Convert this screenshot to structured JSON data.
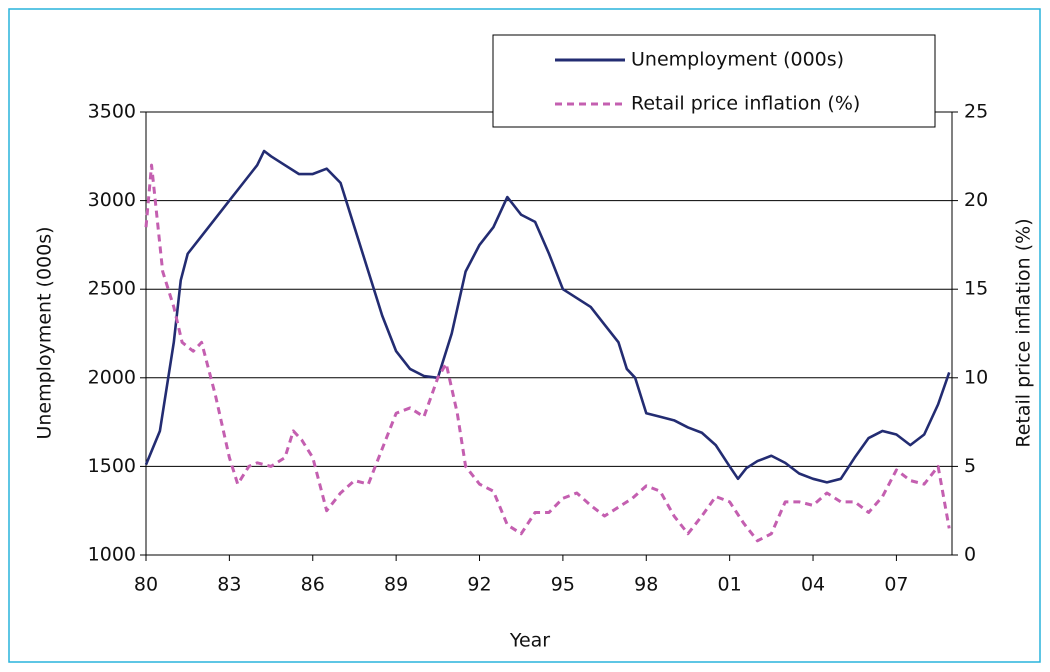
{
  "chart_data": {
    "type": "line",
    "x_label": "Year",
    "y_label": "Unemployment (000s)",
    "y2_label": "Retail price inflation (%)",
    "xlim": [
      1980,
      2009
    ],
    "xticks": [
      {
        "value": 1980,
        "label": "80"
      },
      {
        "value": 1983,
        "label": "83"
      },
      {
        "value": 1986,
        "label": "86"
      },
      {
        "value": 1989,
        "label": "89"
      },
      {
        "value": 1992,
        "label": "92"
      },
      {
        "value": 1995,
        "label": "95"
      },
      {
        "value": 1998,
        "label": "98"
      },
      {
        "value": 2001,
        "label": "01"
      },
      {
        "value": 2004,
        "label": "04"
      },
      {
        "value": 2007,
        "label": "07"
      }
    ],
    "ylim": [
      1000,
      3500
    ],
    "yticks": [
      1000,
      1500,
      2000,
      2500,
      3000,
      3500
    ],
    "y2lim": [
      0,
      25
    ],
    "y2ticks": [
      0,
      5,
      10,
      15,
      20,
      25
    ],
    "grid": true,
    "legend": "top-right",
    "series": [
      {
        "name": "Unemployment (000s)",
        "color": "#232c72",
        "dash": "solid",
        "x": [
          1980,
          1980.5,
          1981,
          1981.25,
          1981.5,
          1982,
          1982.5,
          1983,
          1983.5,
          1984,
          1984.25,
          1984.5,
          1985,
          1985.5,
          1986,
          1986.5,
          1987,
          1987.5,
          1988,
          1988.5,
          1989,
          1989.5,
          1990,
          1990.5,
          1991,
          1991.5,
          1992,
          1992.5,
          1993,
          1993.5,
          1994,
          1994.5,
          1995,
          1995.5,
          1996,
          1996.5,
          1997,
          1997.3,
          1997.6,
          1998,
          1998.5,
          1999,
          1999.5,
          2000,
          2000.5,
          2001,
          2001.3,
          2001.6,
          2002,
          2002.5,
          2003,
          2003.5,
          2004,
          2004.5,
          2005,
          2005.5,
          2006,
          2006.5,
          2007,
          2007.5,
          2008,
          2008.5,
          2008.9
        ],
        "values": [
          1510,
          1700,
          2200,
          2550,
          2700,
          2800,
          2900,
          3000,
          3100,
          3200,
          3280,
          3250,
          3200,
          3150,
          3150,
          3180,
          3100,
          2850,
          2600,
          2350,
          2150,
          2050,
          2010,
          2000,
          2250,
          2600,
          2750,
          2850,
          3020,
          2920,
          2880,
          2700,
          2500,
          2450,
          2400,
          2300,
          2200,
          2050,
          2000,
          1800,
          1780,
          1760,
          1720,
          1690,
          1620,
          1500,
          1430,
          1490,
          1530,
          1560,
          1520,
          1460,
          1430,
          1410,
          1430,
          1550,
          1660,
          1700,
          1680,
          1620,
          1680,
          1850,
          2030
        ]
      },
      {
        "name": "Retail price inflation (%)",
        "color": "#c45fb0",
        "dash": "dashed",
        "axis": "y2",
        "x": [
          1980,
          1980.2,
          1980.6,
          1981,
          1981.3,
          1981.7,
          1982,
          1982.5,
          1983,
          1983.3,
          1983.7,
          1984,
          1984.5,
          1985,
          1985.3,
          1985.6,
          1986,
          1986.5,
          1987,
          1987.5,
          1988,
          1988.5,
          1989,
          1989.5,
          1990,
          1990.5,
          1990.8,
          1991.2,
          1991.5,
          1992,
          1992.5,
          1993,
          1993.5,
          1994,
          1994.5,
          1995,
          1995.5,
          1996,
          1996.5,
          1997,
          1997.5,
          1998,
          1998.5,
          1999,
          1999.5,
          2000,
          2000.5,
          2001,
          2001.5,
          2002,
          2002.5,
          2003,
          2003.5,
          2004,
          2004.5,
          2005,
          2005.5,
          2006,
          2006.5,
          2007,
          2007.5,
          2008,
          2008.5,
          2008.9
        ],
        "values": [
          18.5,
          22,
          16,
          14,
          12,
          11.5,
          12,
          9,
          5.5,
          4,
          5,
          5.2,
          5,
          5.5,
          7,
          6.5,
          5.5,
          2.5,
          3.5,
          4.2,
          4,
          6,
          8,
          8.3,
          7.8,
          10,
          10.8,
          8,
          5,
          4,
          3.6,
          1.7,
          1.2,
          2.4,
          2.4,
          3.2,
          3.5,
          2.8,
          2.2,
          2.7,
          3.2,
          3.9,
          3.6,
          2.2,
          1.2,
          2.2,
          3.3,
          3,
          1.8,
          0.8,
          1.2,
          3,
          3,
          2.8,
          3.5,
          3,
          3,
          2.4,
          3.3,
          4.8,
          4.2,
          4,
          5,
          1.5
        ]
      }
    ]
  }
}
